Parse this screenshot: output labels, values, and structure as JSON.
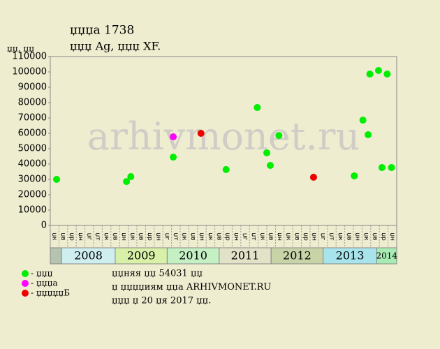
{
  "chart_data": {
    "type": "scatter",
    "title": "џџџа 1738",
    "subtitle": "џџџ Ag, џџџ XF.",
    "y_label": "џџ, џџ",
    "watermark": "arhivmonet.ru",
    "xlim": [
      0,
      40
    ],
    "ylim": [
      0,
      110000
    ],
    "yticks": [
      0,
      10000,
      20000,
      30000,
      40000,
      50000,
      60000,
      70000,
      80000,
      90000,
      100000,
      110000
    ],
    "columns": [
      "џк",
      "џв",
      "џр",
      "џн",
      "џг",
      "џт",
      "џк",
      "џв",
      "џн",
      "џк",
      "џв",
      "џр",
      "џн",
      "џг",
      "џт",
      "џк",
      "џв",
      "џн",
      "џк",
      "џв",
      "џр",
      "џн",
      "џг",
      "џт",
      "џк",
      "џв",
      "џн",
      "џк",
      "џв",
      "џр",
      "џн",
      "џг",
      "џт",
      "џк",
      "џв",
      "џн",
      "џк",
      "џв",
      "џр",
      "џн"
    ],
    "year_bands": [
      {
        "label": null,
        "start": 0,
        "end": 1.3,
        "color": "#b4c4b0"
      },
      {
        "label": "2008",
        "start": 1.3,
        "end": 7.5,
        "color": "#cfeef0"
      },
      {
        "label": "2009",
        "start": 7.5,
        "end": 13.5,
        "color": "#d9f0a8"
      },
      {
        "label": "2010",
        "start": 13.5,
        "end": 19.5,
        "color": "#c4f0c4"
      },
      {
        "label": "2011",
        "start": 19.5,
        "end": 25.5,
        "color": "#e2e2c8"
      },
      {
        "label": "2012",
        "start": 25.5,
        "end": 31.5,
        "color": "#c8d4a8"
      },
      {
        "label": "2013",
        "start": 31.5,
        "end": 37.7,
        "color": "#a8e4ec"
      },
      {
        "label": "2014",
        "start": 37.7,
        "end": 40,
        "color": "#a8ecb4"
      }
    ],
    "series": [
      {
        "name": "- џџџ",
        "color": "#00ee00",
        "x": [
          0.73,
          8.8,
          9.3,
          14.2,
          20.3,
          23.9,
          25,
          25.4,
          26.4,
          35.1,
          36.1,
          36.7,
          36.9,
          37.9,
          38.9,
          38.3,
          39.4
        ],
        "values": [
          30000,
          28600,
          31800,
          44500,
          36400,
          76800,
          47300,
          39100,
          58600,
          32300,
          68600,
          59100,
          98600,
          100900,
          98600,
          37700,
          37700
        ]
      },
      {
        "name": "- џџџа",
        "color": "#ff00ff",
        "x": [
          14.2
        ],
        "values": [
          57700
        ]
      },
      {
        "name": "- џџџџџБ",
        "color": "#ee0000",
        "x": [
          17.4,
          30.4
        ],
        "values": [
          60000,
          31400
        ]
      }
    ],
    "notes": [
      "џџняя џџ 54031 џџ",
      "џ џџџџиям џџа ARHIVMONET.RU",
      "џџџ џ 20 џя 2017 џџ."
    ]
  }
}
